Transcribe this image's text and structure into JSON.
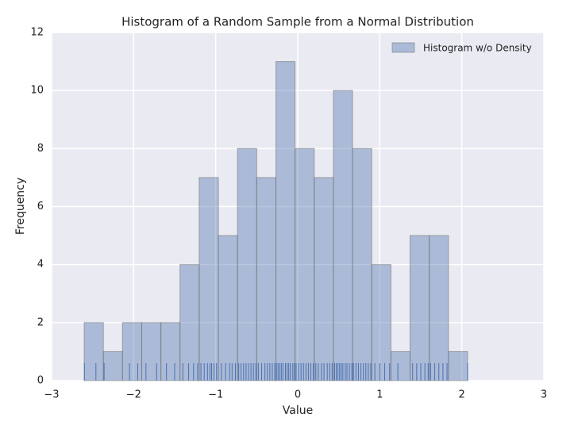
{
  "chart_data": {
    "type": "histogram",
    "title": "Histogram of a Random Sample from a Normal Distribution",
    "xlabel": "Value",
    "ylabel": "Frequency",
    "bins": [
      -2.603,
      -2.369,
      -2.136,
      -1.902,
      -1.668,
      -1.435,
      -1.201,
      -0.967,
      -0.734,
      -0.5,
      -0.266,
      -0.033,
      0.201,
      0.435,
      0.668,
      0.902,
      1.136,
      1.369,
      1.603,
      1.837,
      2.07
    ],
    "series": [
      {
        "name": "Histogram w/o Density",
        "color": "#4c72b0",
        "values": [
          2,
          1,
          2,
          2,
          2,
          4,
          7,
          5,
          8,
          7,
          11,
          8,
          7,
          10,
          8,
          4,
          1,
          5,
          5,
          1
        ]
      }
    ],
    "rug": {
      "color": "#4c72b0",
      "values": [
        -2.6,
        -2.46,
        -2.36,
        -2.05,
        -1.95,
        -1.85,
        -1.72,
        -1.6,
        -1.5,
        -1.4,
        -1.33,
        -1.27,
        -1.22,
        -1.18,
        -1.14,
        -1.1,
        -1.07,
        -1.05,
        -1.02,
        -0.99,
        -0.93,
        -0.88,
        -0.83,
        -0.8,
        -0.76,
        -0.72,
        -0.69,
        -0.66,
        -0.63,
        -0.6,
        -0.57,
        -0.54,
        -0.51,
        -0.48,
        -0.44,
        -0.4,
        -0.37,
        -0.34,
        -0.31,
        -0.28,
        -0.26,
        -0.24,
        -0.22,
        -0.2,
        -0.18,
        -0.15,
        -0.13,
        -0.11,
        -0.09,
        -0.06,
        -0.04,
        -0.02,
        0.01,
        0.04,
        0.07,
        0.1,
        0.13,
        0.16,
        0.19,
        0.22,
        0.25,
        0.29,
        0.32,
        0.36,
        0.39,
        0.42,
        0.45,
        0.47,
        0.49,
        0.51,
        0.53,
        0.55,
        0.58,
        0.6,
        0.63,
        0.66,
        0.68,
        0.71,
        0.74,
        0.77,
        0.8,
        0.83,
        0.86,
        0.89,
        0.94,
        1.0,
        1.06,
        1.12,
        1.22,
        1.4,
        1.45,
        1.5,
        1.55,
        1.59,
        1.62,
        1.67,
        1.72,
        1.77,
        1.82,
        2.07
      ]
    },
    "xlim": [
      -3,
      3
    ],
    "xticks": [
      {
        "value": -3,
        "label": "−3"
      },
      {
        "value": -2,
        "label": "−2"
      },
      {
        "value": -1,
        "label": "−1"
      },
      0,
      1,
      2,
      3
    ],
    "ylim": [
      0,
      12
    ],
    "yticks": [
      0,
      2,
      4,
      6,
      8,
      10,
      12
    ],
    "grid": true,
    "legend": "upper right"
  }
}
